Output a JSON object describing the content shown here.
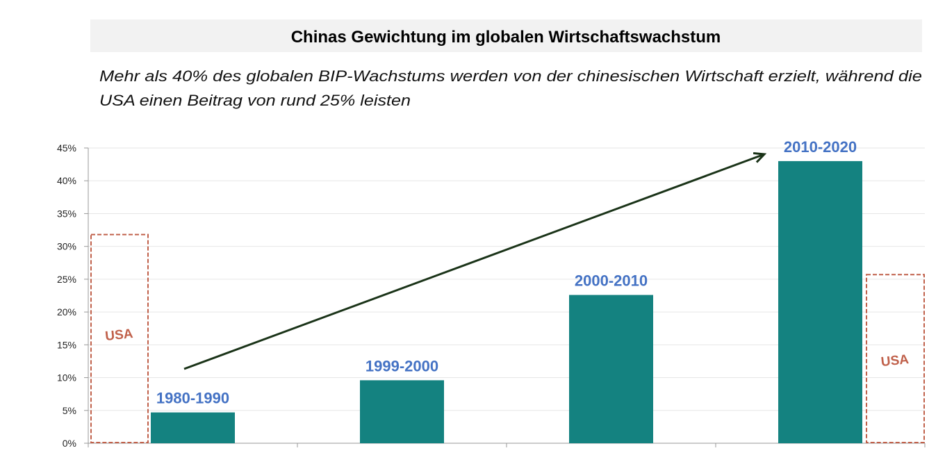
{
  "chart_data": {
    "type": "bar",
    "title": "Chinas Gewichtung im globalen Wirtschaftswachstum",
    "subtitle_lines": [
      "Mehr als 40% des globalen BIP-Wachstums werden von der chinesischen Wirtschaft erzielt, während die",
      "USA einen Beitrag von rund 25% leisten"
    ],
    "categories": [
      "1980-1990",
      "1999-2000",
      "2000-2010",
      "2010-2020"
    ],
    "values": [
      4.7,
      9.6,
      22.6,
      43.0
    ],
    "ylim": [
      0,
      45
    ],
    "yticks": [
      "0%",
      "5%",
      "10%",
      "15%",
      "20%",
      "25%",
      "30%",
      "35%",
      "40%",
      "45%"
    ],
    "ytick_values": [
      0,
      5,
      10,
      15,
      20,
      25,
      30,
      35,
      40,
      45
    ],
    "grid": true,
    "xlabel": "",
    "ylabel": "",
    "annotations": {
      "usa_boxes": [
        {
          "label": "USA",
          "value": 31.8,
          "position": "left"
        },
        {
          "label": "USA",
          "value": 25.7,
          "position": "right"
        }
      ],
      "trend_arrow": {
        "from_category": "1980-1990",
        "to_category": "2010-2020"
      }
    },
    "colors": {
      "bar": "#148280",
      "data_label": "#4472c4",
      "usa": "#c0604a",
      "arrow": "#1a3318",
      "title_bg": "#f2f2f2",
      "grid": "#e6e6e6"
    }
  }
}
